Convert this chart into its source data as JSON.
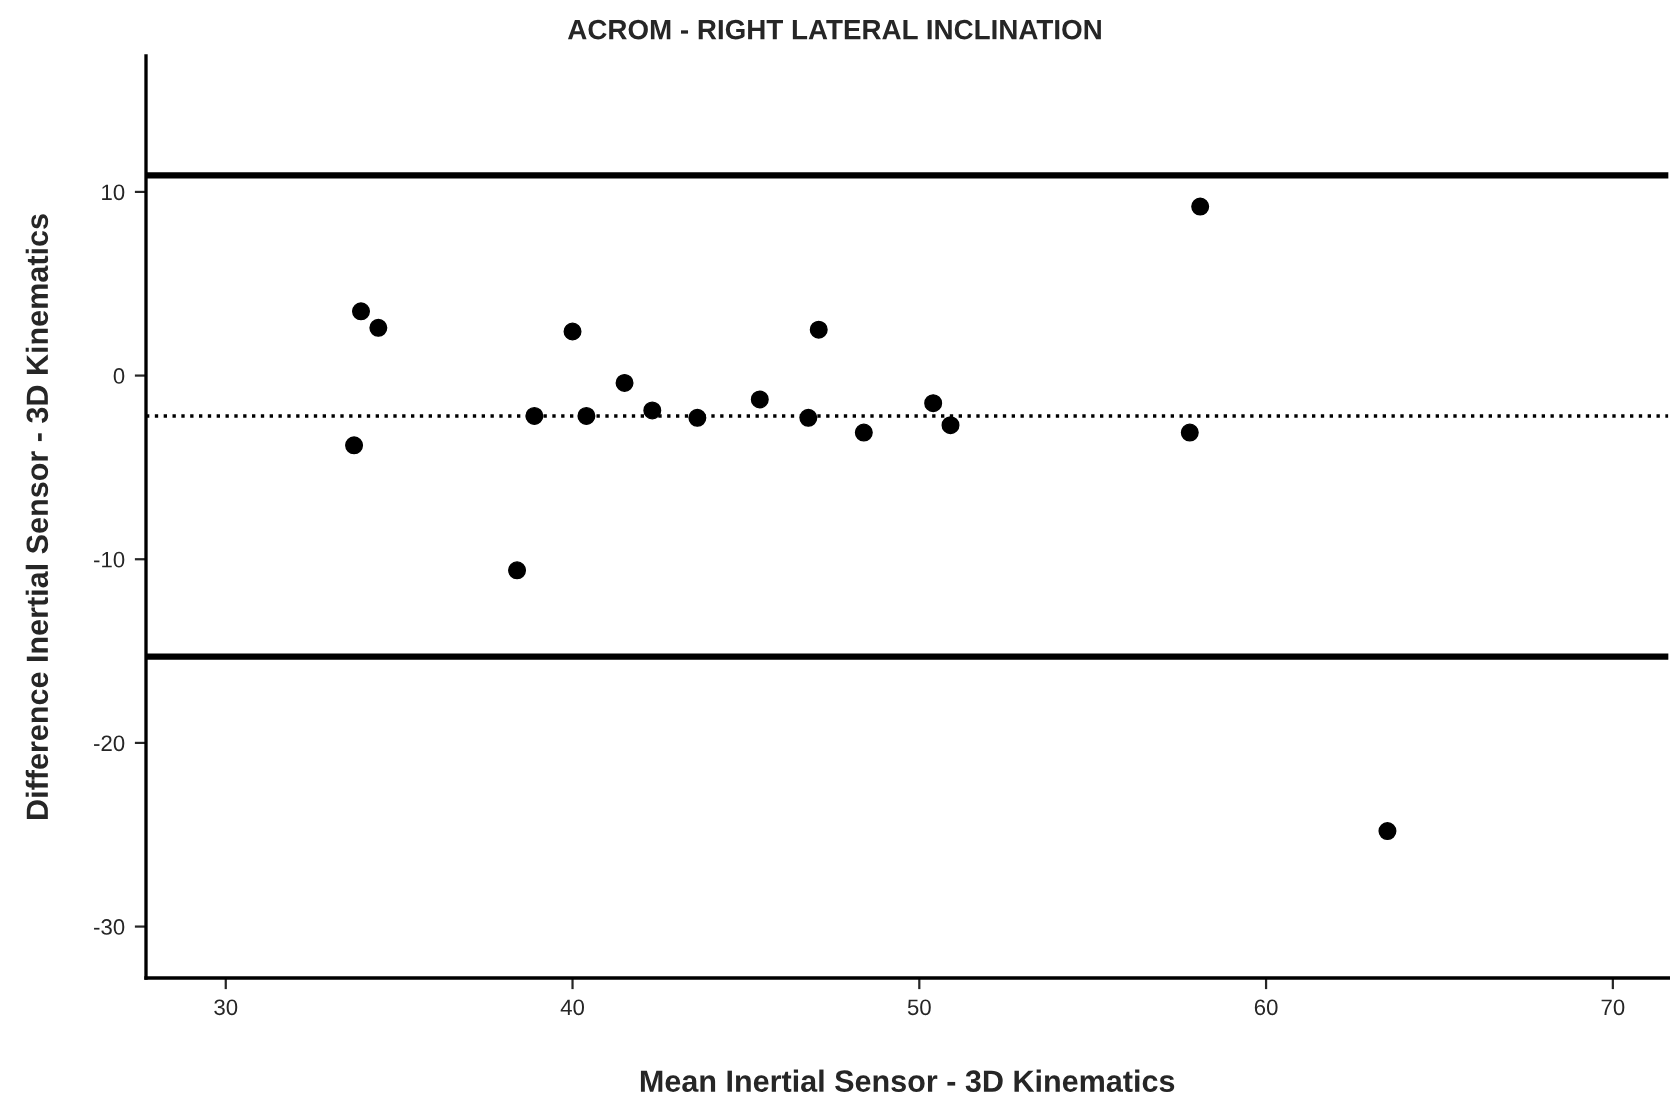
{
  "chart_data": {
    "type": "scatter",
    "title": "ACROM - RIGHT LATERAL INCLINATION",
    "xlabel": "Mean Inertial Sensor - 3D Kinematics",
    "ylabel": "Difference Inertial Sensor - 3D Kinematics",
    "x": [
      33.9,
      34.4,
      33.7,
      38.9,
      38.4,
      40.0,
      40.4,
      41.5,
      42.3,
      43.6,
      45.4,
      46.8,
      47.1,
      48.4,
      50.4,
      50.9,
      57.8,
      58.1,
      63.5
    ],
    "values": [
      3.5,
      2.6,
      -3.8,
      -2.2,
      -10.6,
      2.4,
      -2.2,
      -0.4,
      -1.9,
      -2.3,
      -1.3,
      -2.3,
      2.5,
      -3.1,
      -1.5,
      -2.7,
      -3.1,
      9.2,
      -24.8
    ],
    "color": "#000000",
    "marker": "circle",
    "xlim": [
      27.7,
      71.6
    ],
    "ylim": [
      -32.8,
      17.4
    ],
    "xticks": [
      30,
      40,
      50,
      60,
      70
    ],
    "yticks": [
      -30,
      -20,
      -10,
      0,
      10
    ],
    "ref_lines": [
      {
        "axis": "y",
        "value": 10.9,
        "line_style": "solid"
      },
      {
        "axis": "y",
        "value": -2.2,
        "line_style": "dotted"
      },
      {
        "axis": "y",
        "value": -15.3,
        "line_style": "solid"
      }
    ],
    "grid": false,
    "legend": false
  }
}
